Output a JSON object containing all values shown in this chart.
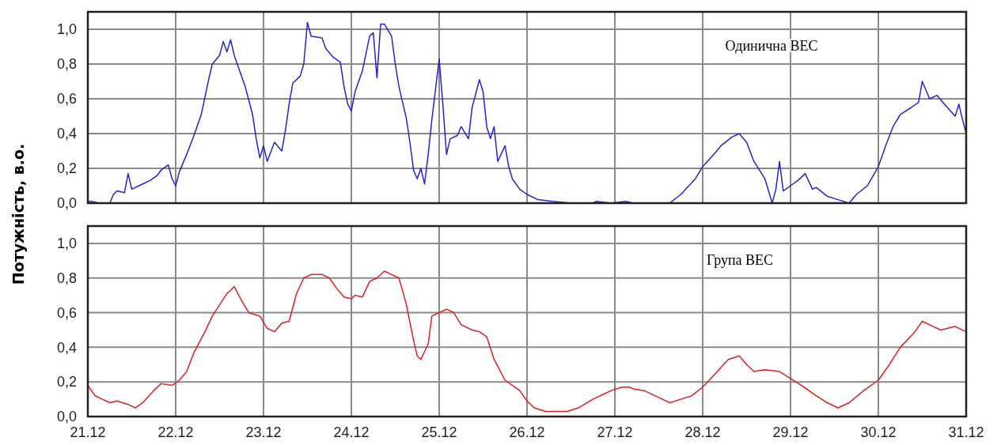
{
  "chart_data": [
    {
      "type": "line",
      "title": "Одинична ВЕС",
      "ylabel": "Потужність, в.о.",
      "xlim": [
        "--12-21",
        "--12-31"
      ],
      "ylim": [
        0,
        1.1
      ],
      "grid": true,
      "tick_labels": "y",
      "xticks": [
        {
          "value": "--12-21",
          "label": null
        },
        {
          "value": "--12-22",
          "label": null
        },
        {
          "value": "--12-23",
          "label": null
        },
        {
          "value": "--12-24",
          "label": null
        },
        {
          "value": "--12-25",
          "label": null
        },
        {
          "value": "--12-26",
          "label": null
        },
        {
          "value": "--12-27",
          "label": null
        },
        {
          "value": "--12-28",
          "label": null
        },
        {
          "value": "--12-29",
          "label": null
        },
        {
          "value": "--12-30",
          "label": null
        },
        {
          "value": "--12-31",
          "label": null
        }
      ],
      "yticks": [
        {
          "value": 0,
          "label": "0,0"
        },
        {
          "value": 0.2,
          "label": "0,2"
        },
        {
          "value": 0.4,
          "label": "0,4"
        },
        {
          "value": 0.6,
          "label": "0,6"
        },
        {
          "value": 0.8,
          "label": "0,8"
        },
        {
          "value": 1,
          "label": "1,0"
        }
      ],
      "series": [
        {
          "color": "#2424d0",
          "x": [
            "--12-21T00:00",
            "--12-21T01:00",
            "--12-21T03:00",
            "--12-21T06:00",
            "--12-21T07:00",
            "--12-21T08:00",
            "--12-21T10:00",
            "--12-21T11:00",
            "--12-21T12:00",
            "--12-21T15:00",
            "--12-21T17:00",
            "--12-21T19:00",
            "--12-21T20:00",
            "--12-21T22:00",
            "--12-21T23:00",
            "--12-22T00:00",
            "--12-22T01:00",
            "--12-22T03:00",
            "--12-22T05:00",
            "--12-22T07:00",
            "--12-22T09:00",
            "--12-22T10:00",
            "--12-22T12:00",
            "--12-22T13:00",
            "--12-22T14:00",
            "--12-22T15:00",
            "--12-22T16:00",
            "--12-22T18:00",
            "--12-22T19:00",
            "--12-22T21:00",
            "--12-22T22:00",
            "--12-22T23:00",
            "--12-23T00:00",
            "--12-23T01:00",
            "--12-23T03:00",
            "--12-23T05:00",
            "--12-23T06:00",
            "--12-23T07:00",
            "--12-23T08:00",
            "--12-23T10:00",
            "--12-23T11:00",
            "--12-23T12:00",
            "--12-23T13:00",
            "--12-23T16:00",
            "--12-23T17:00",
            "--12-23T19:00",
            "--12-23T21:00",
            "--12-23T22:00",
            "--12-23T23:00",
            "--12-24T00:00",
            "--12-24T01:00",
            "--12-24T03:00",
            "--12-24T05:00",
            "--12-24T06:00",
            "--12-24T07:00",
            "--12-24T08:00",
            "--12-24T09:00",
            "--12-24T11:00",
            "--12-24T12:00",
            "--12-24T13:00",
            "--12-24T15:00",
            "--12-24T16:00",
            "--12-24T17:00",
            "--12-24T18:00",
            "--12-24T19:00",
            "--12-24T20:00",
            "--12-24T21:00",
            "--12-24T22:00",
            "--12-25T00:00",
            "--12-25T01:00",
            "--12-25T02:00",
            "--12-25T03:00",
            "--12-25T05:00",
            "--12-25T06:00",
            "--12-25T08:00",
            "--12-25T09:00",
            "--12-25T11:00",
            "--12-25T12:00",
            "--12-25T13:00",
            "--12-25T14:00",
            "--12-25T15:00",
            "--12-25T16:00",
            "--12-25T18:00",
            "--12-25T19:00",
            "--12-25T20:00",
            "--12-25T22:00",
            "--12-26T00:00",
            "--12-26T03:00",
            "--12-26T07:00",
            "--12-26T12:00",
            "--12-26T18:00",
            "--12-26T19:00",
            "--12-26T23:00",
            "--12-27T03:00",
            "--12-27T05:00",
            "--12-27T15:00",
            "--12-27T18:00",
            "--12-27T22:00",
            "--12-28T00:00",
            "--12-28T03:00",
            "--12-28T05:00",
            "--12-28T08:00",
            "--12-28T10:00",
            "--12-28T12:00",
            "--12-28T14:00",
            "--12-28T17:00",
            "--12-28T19:00",
            "--12-28T20:00",
            "--12-28T21:00",
            "--12-28T22:00",
            "--12-29T00:00",
            "--12-29T02:00",
            "--12-29T04:00",
            "--12-29T06:00",
            "--12-29T07:00",
            "--12-29T10:00",
            "--12-29T13:00",
            "--12-29T16:00",
            "--12-29T18:00",
            "--12-29T21:00",
            "--12-30T00:00",
            "--12-30T02:00",
            "--12-30T04:00",
            "--12-30T06:00",
            "--12-30T09:00",
            "--12-30T11:00",
            "--12-30T12:00",
            "--12-30T14:00",
            "--12-30T16:00",
            "--12-30T18:00",
            "--12-30T21:00",
            "--12-30T22:00",
            "--12-30T23:00",
            "--12-31T00:00"
          ],
          "values": [
            0.01,
            0.01,
            0,
            0,
            0.05,
            0.07,
            0.06,
            0.17,
            0.08,
            0.11,
            0.13,
            0.16,
            0.19,
            0.22,
            0.14,
            0.1,
            0.18,
            0.28,
            0.39,
            0.51,
            0.71,
            0.8,
            0.85,
            0.93,
            0.87,
            0.94,
            0.85,
            0.73,
            0.67,
            0.51,
            0.37,
            0.26,
            0.33,
            0.24,
            0.35,
            0.3,
            0.42,
            0.57,
            0.69,
            0.73,
            0.8,
            1.04,
            0.96,
            0.95,
            0.89,
            0.84,
            0.81,
            0.67,
            0.57,
            0.53,
            0.64,
            0.76,
            0.96,
            0.98,
            0.72,
            1.03,
            1.03,
            0.96,
            0.8,
            0.67,
            0.49,
            0.35,
            0.19,
            0.14,
            0.2,
            0.11,
            0.28,
            0.48,
            0.83,
            0.57,
            0.28,
            0.37,
            0.39,
            0.44,
            0.37,
            0.55,
            0.71,
            0.64,
            0.44,
            0.37,
            0.44,
            0.24,
            0.33,
            0.21,
            0.14,
            0.08,
            0.05,
            0.02,
            0.01,
            0,
            0,
            0.01,
            0,
            0.01,
            0,
            0,
            0.05,
            0.14,
            0.21,
            0.28,
            0.33,
            0.38,
            0.4,
            0.35,
            0.24,
            0.14,
            0,
            0.08,
            0.24,
            0.07,
            0.1,
            0.13,
            0.17,
            0.08,
            0.09,
            0.04,
            0.02,
            0,
            0.05,
            0.1,
            0.21,
            0.33,
            0.44,
            0.51,
            0.55,
            0.58,
            0.7,
            0.6,
            0.62,
            0.57,
            0.5,
            0.57,
            0.48,
            0.4
          ]
        }
      ]
    },
    {
      "type": "line",
      "title": "Група ВЕС",
      "xlim": [
        "--12-21",
        "--12-31"
      ],
      "ylim": [
        0,
        1.1
      ],
      "grid": true,
      "xticks": [
        {
          "value": "--12-21",
          "label": "21.12"
        },
        {
          "value": "--12-22",
          "label": "22.12"
        },
        {
          "value": "--12-23",
          "label": "23.12"
        },
        {
          "value": "--12-24",
          "label": "24.12"
        },
        {
          "value": "--12-25",
          "label": "25.12"
        },
        {
          "value": "--12-26",
          "label": "26.12"
        },
        {
          "value": "--12-27",
          "label": "27.12"
        },
        {
          "value": "--12-28",
          "label": "28.12"
        },
        {
          "value": "--12-29",
          "label": "29.12"
        },
        {
          "value": "--12-30",
          "label": "30.12"
        },
        {
          "value": "--12-31",
          "label": "31.12"
        }
      ],
      "yticks": [
        {
          "value": 0,
          "label": "0,0"
        },
        {
          "value": 0.2,
          "label": "0,2"
        },
        {
          "value": 0.4,
          "label": "0,4"
        },
        {
          "value": 0.6,
          "label": "0,6"
        },
        {
          "value": 0.8,
          "label": "0,8"
        },
        {
          "value": 1,
          "label": "1,0"
        }
      ],
      "series": [
        {
          "color": "#e02020",
          "x": [
            "--12-21T00:00",
            "--12-21T02:00",
            "--12-21T04:00",
            "--12-21T06:00",
            "--12-21T08:00",
            "--12-21T11:00",
            "--12-21T13:00",
            "--12-21T15:00",
            "--12-21T18:00",
            "--12-21T20:00",
            "--12-21T23:00",
            "--12-22T01:00",
            "--12-22T03:00",
            "--12-22T05:00",
            "--12-22T08:00",
            "--12-22T10:00",
            "--12-22T14:00",
            "--12-22T16:00",
            "--12-22T18:00",
            "--12-22T20:00",
            "--12-22T23:00",
            "--12-23T01:00",
            "--12-23T03:00",
            "--12-23T05:00",
            "--12-23T07:00",
            "--12-23T09:00",
            "--12-23T11:00",
            "--12-23T13:00",
            "--12-23T16:00",
            "--12-23T18:00",
            "--12-23T20:00",
            "--12-23T22:00",
            "--12-24T00:00",
            "--12-24T01:00",
            "--12-24T03:00",
            "--12-24T05:00",
            "--12-24T07:00",
            "--12-24T09:00",
            "--12-24T11:00",
            "--12-24T13:00",
            "--12-24T15:00",
            "--12-24T17:00",
            "--12-24T18:00",
            "--12-24T19:00",
            "--12-24T21:00",
            "--12-24T22:00",
            "--12-25T00:00",
            "--12-25T02:00",
            "--12-25T04:00",
            "--12-25T06:00",
            "--12-25T09:00",
            "--12-25T11:00",
            "--12-25T13:00",
            "--12-25T15:00",
            "--12-25T18:00",
            "--12-25T22:00",
            "--12-26T00:00",
            "--12-26T02:00",
            "--12-26T05:00",
            "--12-26T07:00",
            "--12-26T11:00",
            "--12-26T14:00",
            "--12-26T18:00",
            "--12-26T23:00",
            "--12-27T02:00",
            "--12-27T04:00",
            "--12-27T05:00",
            "--12-27T08:00",
            "--12-27T12:00",
            "--12-27T15:00",
            "--12-27T18:00",
            "--12-27T21:00",
            "--12-28T00:00",
            "--12-28T04:00",
            "--12-28T07:00",
            "--12-28T10:00",
            "--12-28T12:00",
            "--12-28T14:00",
            "--12-28T17:00",
            "--12-28T21:00",
            "--12-29T00:00",
            "--12-29T03:00",
            "--12-29T07:00",
            "--12-29T10:00",
            "--12-29T13:00",
            "--12-29T16:00",
            "--12-29T20:00",
            "--12-30T00:00",
            "--12-30T03:00",
            "--12-30T06:00",
            "--12-30T10:00",
            "--12-30T12:00",
            "--12-30T15:00",
            "--12-30T17:00",
            "--12-30T21:00",
            "--12-31T00:00"
          ],
          "values": [
            0.18,
            0.12,
            0.1,
            0.08,
            0.09,
            0.07,
            0.05,
            0.08,
            0.15,
            0.19,
            0.18,
            0.21,
            0.26,
            0.37,
            0.49,
            0.58,
            0.71,
            0.75,
            0.67,
            0.6,
            0.58,
            0.51,
            0.49,
            0.54,
            0.55,
            0.71,
            0.8,
            0.82,
            0.82,
            0.8,
            0.74,
            0.69,
            0.68,
            0.7,
            0.69,
            0.78,
            0.8,
            0.84,
            0.82,
            0.8,
            0.65,
            0.44,
            0.35,
            0.33,
            0.42,
            0.58,
            0.6,
            0.62,
            0.6,
            0.53,
            0.5,
            0.49,
            0.46,
            0.33,
            0.21,
            0.15,
            0.09,
            0.05,
            0.03,
            0.03,
            0.03,
            0.05,
            0.1,
            0.15,
            0.17,
            0.17,
            0.16,
            0.15,
            0.11,
            0.08,
            0.1,
            0.12,
            0.17,
            0.26,
            0.33,
            0.35,
            0.3,
            0.26,
            0.27,
            0.26,
            0.22,
            0.18,
            0.12,
            0.08,
            0.05,
            0.08,
            0.15,
            0.21,
            0.3,
            0.4,
            0.49,
            0.55,
            0.52,
            0.5,
            0.52,
            0.49
          ]
        }
      ]
    }
  ]
}
